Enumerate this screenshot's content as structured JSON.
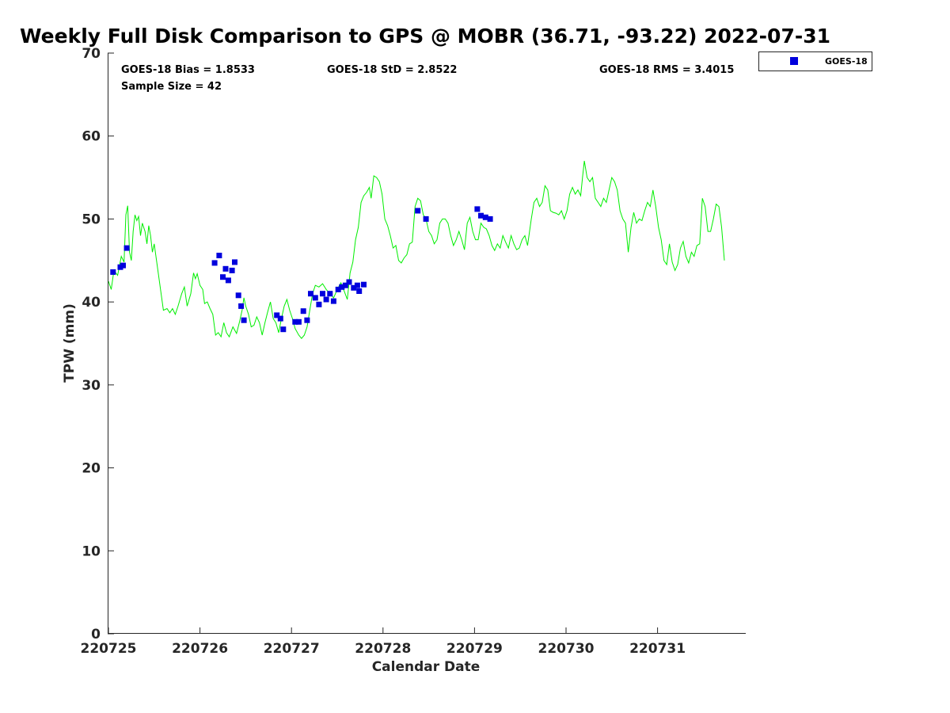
{
  "chart_data": {
    "type": "scatter",
    "title": "Weekly Full Disk Comparison to GPS @ MOBR (36.71, -93.22) 2022-07-31",
    "xlabel": "Calendar Date",
    "ylabel": "TPW (mm)",
    "xlim": [
      0,
      6.95
    ],
    "ylim": [
      0,
      70
    ],
    "x_unit": "days since 220725",
    "x_ticks": [
      {
        "value": 0,
        "label": "220725"
      },
      {
        "value": 1,
        "label": "220726"
      },
      {
        "value": 2,
        "label": "220727"
      },
      {
        "value": 3,
        "label": "220728"
      },
      {
        "value": 4,
        "label": "220729"
      },
      {
        "value": 5,
        "label": "220730"
      },
      {
        "value": 6,
        "label": "220731"
      }
    ],
    "y_ticks": [
      0,
      10,
      20,
      30,
      40,
      50,
      60,
      70
    ],
    "grid": false,
    "legend_position": "outside-top-right",
    "stats": {
      "bias": "GOES-18 Bias = 1.8533",
      "std": "GOES-18 StD = 2.8522",
      "rms": "GOES-18 RMS = 3.4015",
      "sample": "Sample Size = 42"
    },
    "gps_line": {
      "color": "#00ee00",
      "points": [
        [
          0.0,
          42.5
        ],
        [
          0.03,
          41.5
        ],
        [
          0.06,
          43.8
        ],
        [
          0.1,
          43.2
        ],
        [
          0.14,
          45.5
        ],
        [
          0.17,
          44.8
        ],
        [
          0.19,
          50.5
        ],
        [
          0.21,
          51.6
        ],
        [
          0.23,
          46.0
        ],
        [
          0.25,
          45.0
        ],
        [
          0.27,
          48.5
        ],
        [
          0.29,
          50.5
        ],
        [
          0.31,
          49.8
        ],
        [
          0.33,
          50.3
        ],
        [
          0.35,
          48.0
        ],
        [
          0.37,
          49.5
        ],
        [
          0.4,
          48.5
        ],
        [
          0.42,
          47.0
        ],
        [
          0.44,
          49.2
        ],
        [
          0.46,
          48.0
        ],
        [
          0.48,
          46.0
        ],
        [
          0.5,
          47.0
        ],
        [
          0.55,
          43.0
        ],
        [
          0.6,
          39.0
        ],
        [
          0.64,
          39.2
        ],
        [
          0.67,
          38.7
        ],
        [
          0.7,
          39.2
        ],
        [
          0.73,
          38.5
        ],
        [
          0.76,
          39.5
        ],
        [
          0.8,
          41.0
        ],
        [
          0.83,
          41.8
        ],
        [
          0.86,
          39.5
        ],
        [
          0.9,
          41.0
        ],
        [
          0.93,
          43.5
        ],
        [
          0.95,
          42.8
        ],
        [
          0.97,
          43.4
        ],
        [
          1.0,
          42.0
        ],
        [
          1.03,
          41.5
        ],
        [
          1.05,
          39.8
        ],
        [
          1.08,
          40.0
        ],
        [
          1.11,
          39.2
        ],
        [
          1.14,
          38.5
        ],
        [
          1.17,
          36.0
        ],
        [
          1.2,
          36.3
        ],
        [
          1.23,
          35.8
        ],
        [
          1.26,
          37.5
        ],
        [
          1.29,
          36.3
        ],
        [
          1.32,
          35.8
        ],
        [
          1.36,
          37.0
        ],
        [
          1.4,
          36.2
        ],
        [
          1.43,
          37.5
        ],
        [
          1.46,
          39.0
        ],
        [
          1.48,
          40.5
        ],
        [
          1.5,
          39.5
        ],
        [
          1.53,
          38.5
        ],
        [
          1.56,
          37.0
        ],
        [
          1.59,
          37.2
        ],
        [
          1.62,
          38.2
        ],
        [
          1.65,
          37.5
        ],
        [
          1.68,
          36.0
        ],
        [
          1.71,
          37.5
        ],
        [
          1.74,
          38.8
        ],
        [
          1.77,
          40.0
        ],
        [
          1.8,
          38.0
        ],
        [
          1.83,
          37.5
        ],
        [
          1.86,
          36.3
        ],
        [
          1.89,
          38.0
        ],
        [
          1.92,
          39.5
        ],
        [
          1.95,
          40.3
        ],
        [
          1.98,
          39.0
        ],
        [
          2.01,
          38.0
        ],
        [
          2.04,
          36.8
        ],
        [
          2.08,
          36.0
        ],
        [
          2.11,
          35.6
        ],
        [
          2.14,
          36.0
        ],
        [
          2.17,
          37.0
        ],
        [
          2.2,
          39.0
        ],
        [
          2.23,
          41.0
        ],
        [
          2.26,
          42.0
        ],
        [
          2.3,
          41.8
        ],
        [
          2.34,
          42.2
        ],
        [
          2.38,
          41.5
        ],
        [
          2.42,
          41.0
        ],
        [
          2.46,
          40.5
        ],
        [
          2.5,
          41.5
        ],
        [
          2.54,
          42.3
        ],
        [
          2.58,
          41.2
        ],
        [
          2.61,
          40.3
        ],
        [
          2.64,
          43.5
        ],
        [
          2.67,
          44.8
        ],
        [
          2.7,
          47.5
        ],
        [
          2.73,
          49.0
        ],
        [
          2.76,
          52.0
        ],
        [
          2.79,
          52.8
        ],
        [
          2.82,
          53.2
        ],
        [
          2.85,
          53.8
        ],
        [
          2.87,
          52.5
        ],
        [
          2.9,
          55.2
        ],
        [
          2.93,
          55.0
        ],
        [
          2.96,
          54.5
        ],
        [
          2.99,
          53.0
        ],
        [
          3.02,
          50.0
        ],
        [
          3.05,
          49.2
        ],
        [
          3.08,
          48.0
        ],
        [
          3.11,
          46.5
        ],
        [
          3.14,
          46.8
        ],
        [
          3.17,
          45.0
        ],
        [
          3.2,
          44.7
        ],
        [
          3.23,
          45.3
        ],
        [
          3.26,
          45.7
        ],
        [
          3.29,
          47.0
        ],
        [
          3.32,
          47.2
        ],
        [
          3.35,
          51.5
        ],
        [
          3.38,
          52.5
        ],
        [
          3.41,
          52.2
        ],
        [
          3.44,
          50.5
        ],
        [
          3.47,
          50.0
        ],
        [
          3.5,
          48.5
        ],
        [
          3.53,
          48.0
        ],
        [
          3.56,
          47.0
        ],
        [
          3.59,
          47.5
        ],
        [
          3.62,
          49.5
        ],
        [
          3.65,
          50.0
        ],
        [
          3.68,
          50.0
        ],
        [
          3.71,
          49.5
        ],
        [
          3.74,
          48.0
        ],
        [
          3.77,
          46.8
        ],
        [
          3.8,
          47.5
        ],
        [
          3.83,
          48.5
        ],
        [
          3.86,
          47.5
        ],
        [
          3.89,
          46.3
        ],
        [
          3.92,
          49.5
        ],
        [
          3.95,
          50.2
        ],
        [
          3.98,
          48.5
        ],
        [
          4.01,
          47.5
        ],
        [
          4.04,
          47.5
        ],
        [
          4.07,
          49.5
        ],
        [
          4.1,
          49.0
        ],
        [
          4.13,
          48.8
        ],
        [
          4.16,
          48.0
        ],
        [
          4.19,
          46.8
        ],
        [
          4.22,
          46.2
        ],
        [
          4.25,
          47.0
        ],
        [
          4.28,
          46.5
        ],
        [
          4.31,
          48.0
        ],
        [
          4.34,
          47.2
        ],
        [
          4.37,
          46.5
        ],
        [
          4.4,
          48.0
        ],
        [
          4.43,
          47.0
        ],
        [
          4.46,
          46.3
        ],
        [
          4.49,
          46.5
        ],
        [
          4.52,
          47.5
        ],
        [
          4.55,
          48.0
        ],
        [
          4.58,
          46.8
        ],
        [
          4.62,
          50.0
        ],
        [
          4.65,
          52.0
        ],
        [
          4.68,
          52.5
        ],
        [
          4.71,
          51.5
        ],
        [
          4.74,
          52.0
        ],
        [
          4.77,
          54.0
        ],
        [
          4.8,
          53.5
        ],
        [
          4.83,
          51.0
        ],
        [
          4.86,
          50.8
        ],
        [
          4.89,
          50.7
        ],
        [
          4.92,
          50.5
        ],
        [
          4.95,
          51.0
        ],
        [
          4.98,
          50.0
        ],
        [
          5.01,
          51.0
        ],
        [
          5.04,
          53.0
        ],
        [
          5.07,
          53.8
        ],
        [
          5.1,
          53.0
        ],
        [
          5.13,
          53.5
        ],
        [
          5.16,
          52.8
        ],
        [
          5.18,
          55.0
        ],
        [
          5.2,
          57.0
        ],
        [
          5.23,
          55.0
        ],
        [
          5.26,
          54.5
        ],
        [
          5.29,
          55.0
        ],
        [
          5.32,
          52.5
        ],
        [
          5.35,
          52.0
        ],
        [
          5.38,
          51.5
        ],
        [
          5.41,
          52.5
        ],
        [
          5.44,
          52.0
        ],
        [
          5.47,
          53.5
        ],
        [
          5.5,
          55.0
        ],
        [
          5.53,
          54.5
        ],
        [
          5.56,
          53.5
        ],
        [
          5.59,
          51.0
        ],
        [
          5.62,
          50.0
        ],
        [
          5.65,
          49.5
        ],
        [
          5.68,
          46.0
        ],
        [
          5.71,
          49.0
        ],
        [
          5.74,
          50.8
        ],
        [
          5.77,
          49.5
        ],
        [
          5.8,
          50.0
        ],
        [
          5.83,
          49.8
        ],
        [
          5.86,
          51.0
        ],
        [
          5.89,
          52.0
        ],
        [
          5.92,
          51.5
        ],
        [
          5.95,
          53.5
        ],
        [
          5.98,
          51.5
        ],
        [
          6.01,
          49.0
        ],
        [
          6.04,
          47.5
        ],
        [
          6.07,
          45.0
        ],
        [
          6.1,
          44.5
        ],
        [
          6.13,
          47.0
        ],
        [
          6.16,
          44.8
        ],
        [
          6.19,
          43.8
        ],
        [
          6.22,
          44.5
        ],
        [
          6.25,
          46.5
        ],
        [
          6.28,
          47.3
        ],
        [
          6.31,
          45.5
        ],
        [
          6.34,
          44.7
        ],
        [
          6.37,
          46.0
        ],
        [
          6.4,
          45.5
        ],
        [
          6.43,
          46.8
        ],
        [
          6.46,
          47.0
        ],
        [
          6.49,
          52.5
        ],
        [
          6.52,
          51.5
        ],
        [
          6.55,
          48.5
        ],
        [
          6.58,
          48.5
        ],
        [
          6.61,
          50.0
        ],
        [
          6.64,
          51.8
        ],
        [
          6.67,
          51.5
        ],
        [
          6.7,
          49.0
        ],
        [
          6.73,
          45.0
        ]
      ]
    },
    "series": [
      {
        "name": "GOES-18",
        "color": "#0000dd",
        "marker": "square",
        "points": [
          [
            0.05,
            43.6
          ],
          [
            0.13,
            44.2
          ],
          [
            0.16,
            44.4
          ],
          [
            0.2,
            46.5
          ],
          [
            1.16,
            44.7
          ],
          [
            1.21,
            45.6
          ],
          [
            1.25,
            43.0
          ],
          [
            1.28,
            44.0
          ],
          [
            1.31,
            42.6
          ],
          [
            1.35,
            43.8
          ],
          [
            1.38,
            44.8
          ],
          [
            1.42,
            40.8
          ],
          [
            1.45,
            39.5
          ],
          [
            1.48,
            37.8
          ],
          [
            1.84,
            38.4
          ],
          [
            1.88,
            38.0
          ],
          [
            1.91,
            36.7
          ],
          [
            2.04,
            37.6
          ],
          [
            2.08,
            37.6
          ],
          [
            2.13,
            38.9
          ],
          [
            2.17,
            37.8
          ],
          [
            2.21,
            41.0
          ],
          [
            2.26,
            40.5
          ],
          [
            2.3,
            39.7
          ],
          [
            2.34,
            41.0
          ],
          [
            2.38,
            40.3
          ],
          [
            2.42,
            41.0
          ],
          [
            2.46,
            40.1
          ],
          [
            2.51,
            41.5
          ],
          [
            2.55,
            41.8
          ],
          [
            2.59,
            42.0
          ],
          [
            2.63,
            42.4
          ],
          [
            2.68,
            41.7
          ],
          [
            2.72,
            42.0
          ],
          [
            2.74,
            41.3
          ],
          [
            2.79,
            42.1
          ],
          [
            3.38,
            51.0
          ],
          [
            3.47,
            50.0
          ],
          [
            4.03,
            51.2
          ],
          [
            4.07,
            50.4
          ],
          [
            4.12,
            50.2
          ],
          [
            4.17,
            50.0
          ]
        ]
      }
    ]
  },
  "legend": {
    "label": "GOES-18"
  }
}
